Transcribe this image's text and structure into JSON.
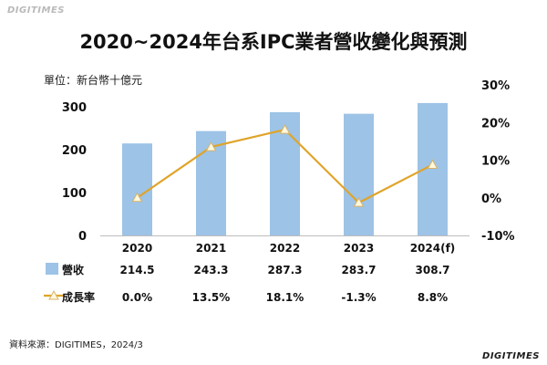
{
  "logo_text": "DIGITIMES",
  "unit_label": "單位：新台幣十億元",
  "source_note": "資料來源：DIGITIMES，2024/3",
  "colors": {
    "bar": "#9dc3e6",
    "line": "#e0a42a",
    "marker_fill": "#fff8dc"
  },
  "chart_data": {
    "type": "bar",
    "title": "2020~2024年台系IPC業者營收變化與預測",
    "categories": [
      "2020",
      "2021",
      "2022",
      "2023",
      "2024(f)"
    ],
    "series": [
      {
        "name": "營收",
        "type": "bar",
        "axis": "left",
        "values": [
          214.5,
          243.3,
          287.3,
          283.7,
          308.7
        ],
        "labels": [
          "214.5",
          "243.3",
          "287.3",
          "283.7",
          "308.7"
        ]
      },
      {
        "name": "成長率",
        "type": "line",
        "axis": "right",
        "values": [
          0.0,
          13.5,
          18.1,
          -1.3,
          8.8
        ],
        "labels": [
          "0.0%",
          "13.5%",
          "18.1%",
          "-1.3%",
          "8.8%"
        ]
      }
    ],
    "y_left": {
      "ylim": [
        0,
        300
      ],
      "ticks": [
        "0",
        "100",
        "200",
        "300"
      ]
    },
    "y_right": {
      "ylim": [
        -10,
        30
      ],
      "ticks": [
        "-10%",
        "0%",
        "10%",
        "20%",
        "30%"
      ]
    },
    "legend": "data-table",
    "grid": false
  }
}
